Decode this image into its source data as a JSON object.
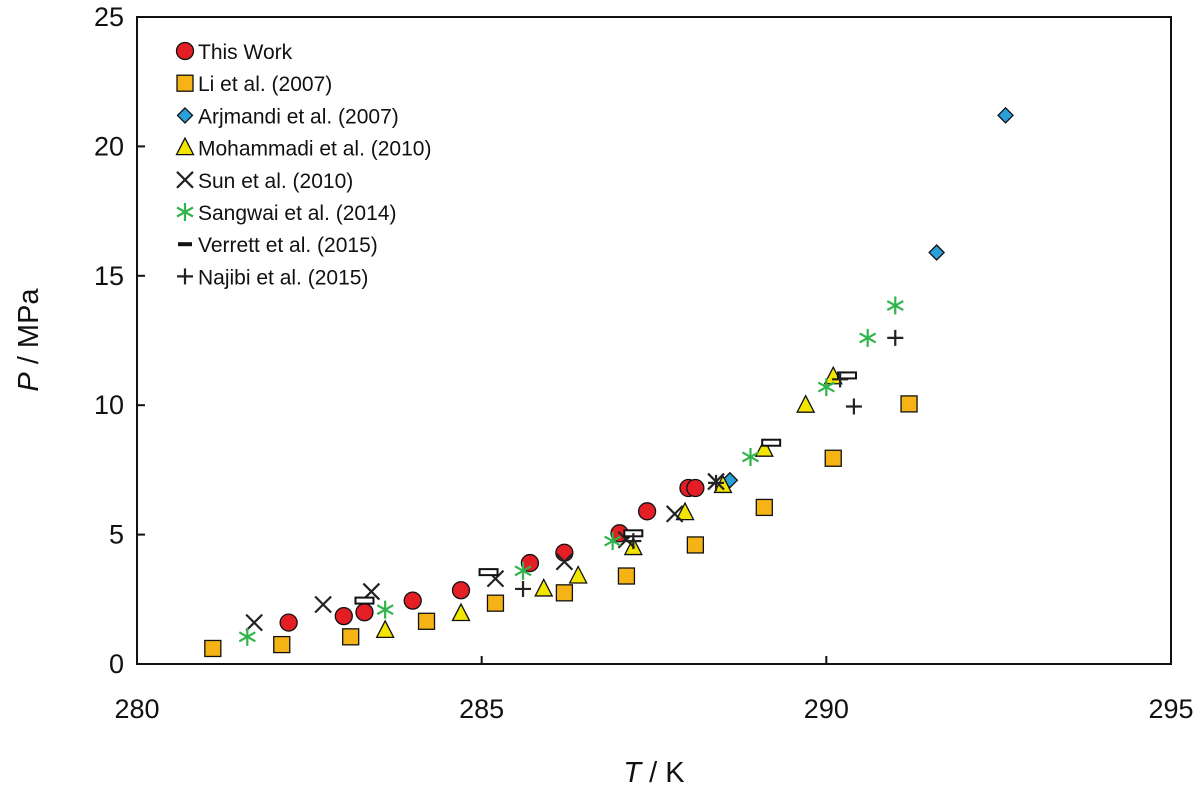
{
  "chart_data": {
    "type": "scatter",
    "xlabel_var": "T",
    "xlabel_unit": " / K",
    "ylabel_var": "P",
    "ylabel_unit": " / MPa",
    "xlim": [
      280,
      295
    ],
    "ylim": [
      0,
      25
    ],
    "xticks": [
      280,
      285,
      290,
      295
    ],
    "yticks": [
      0,
      5,
      10,
      15,
      20,
      25
    ],
    "legend_position": "top-left",
    "series": [
      {
        "name": "This Work",
        "marker": "circle",
        "color": "#e31e24",
        "points": [
          [
            282.2,
            1.6
          ],
          [
            283.0,
            1.85
          ],
          [
            283.3,
            2.0
          ],
          [
            284.0,
            2.45
          ],
          [
            284.7,
            2.85
          ],
          [
            285.7,
            3.9
          ],
          [
            286.2,
            4.3
          ],
          [
            287.0,
            5.05
          ],
          [
            287.4,
            5.9
          ],
          [
            288.0,
            6.8
          ],
          [
            288.1,
            6.8
          ]
        ]
      },
      {
        "name": "Li et al. (2007)",
        "marker": "square",
        "color": "#f5b316",
        "points": [
          [
            281.1,
            0.6
          ],
          [
            282.1,
            0.75
          ],
          [
            283.1,
            1.05
          ],
          [
            284.2,
            1.65
          ],
          [
            285.2,
            2.35
          ],
          [
            286.2,
            2.75
          ],
          [
            287.1,
            3.4
          ],
          [
            288.1,
            4.6
          ],
          [
            289.1,
            6.05
          ],
          [
            290.1,
            7.95
          ],
          [
            291.2,
            10.05
          ]
        ]
      },
      {
        "name": "Arjmandi et al. (2007)",
        "marker": "diamond",
        "color": "#2a9fd8",
        "points": [
          [
            288.6,
            7.1
          ],
          [
            291.6,
            15.9
          ],
          [
            292.6,
            21.2
          ]
        ]
      },
      {
        "name": "Mohammadi et al. (2010)",
        "marker": "triangle",
        "color": "#f2e500",
        "points": [
          [
            283.6,
            1.3
          ],
          [
            284.7,
            1.95
          ],
          [
            285.9,
            2.9
          ],
          [
            286.4,
            3.4
          ],
          [
            287.2,
            4.5
          ],
          [
            287.95,
            5.85
          ],
          [
            288.5,
            6.9
          ],
          [
            289.1,
            8.3
          ],
          [
            289.7,
            10.0
          ],
          [
            290.1,
            11.1
          ]
        ]
      },
      {
        "name": "Sun et al. (2010)",
        "marker": "x",
        "color": "#222222",
        "points": [
          [
            281.7,
            1.6
          ],
          [
            282.7,
            2.3
          ],
          [
            283.4,
            2.8
          ],
          [
            285.2,
            3.3
          ],
          [
            286.2,
            3.95
          ],
          [
            287.1,
            4.8
          ],
          [
            287.8,
            5.8
          ],
          [
            288.4,
            7.05
          ]
        ]
      },
      {
        "name": "Sangwai et al. (2014)",
        "marker": "asterisk",
        "color": "#31b44b",
        "points": [
          [
            281.6,
            1.05
          ],
          [
            283.6,
            2.1
          ],
          [
            285.6,
            3.6
          ],
          [
            286.9,
            4.75
          ],
          [
            288.9,
            8.0
          ],
          [
            290.0,
            10.7
          ],
          [
            290.6,
            12.6
          ],
          [
            291.0,
            13.85
          ]
        ]
      },
      {
        "name": "Verrett et al. (2015)",
        "marker": "dash",
        "color": "#222222",
        "points": [
          [
            283.3,
            2.45
          ],
          [
            285.1,
            3.55
          ],
          [
            287.2,
            5.05
          ],
          [
            289.2,
            8.55
          ],
          [
            290.3,
            11.15
          ]
        ]
      },
      {
        "name": "Najibi et al. (2015)",
        "marker": "plus",
        "color": "#222222",
        "points": [
          [
            285.6,
            2.9
          ],
          [
            287.2,
            4.75
          ],
          [
            288.4,
            7.0
          ],
          [
            290.2,
            11.0
          ],
          [
            290.4,
            9.95
          ],
          [
            291.0,
            12.6
          ]
        ]
      }
    ]
  }
}
